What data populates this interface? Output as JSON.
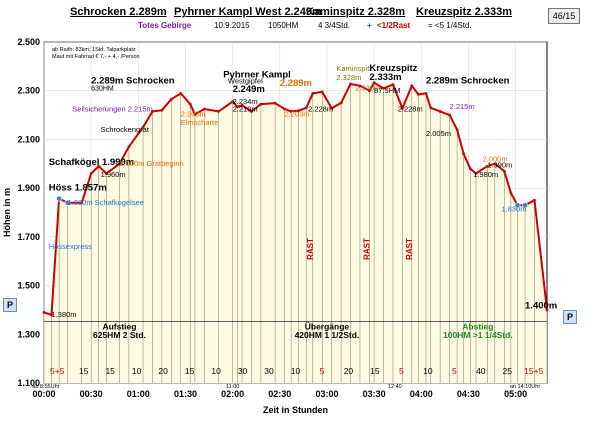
{
  "header": {
    "title_parts": [
      "Schrocken 2.289m",
      "Pyhrner Kampl West 2.249m",
      "Kaminspitz 2.328m",
      "Kreuzspitz 2.333m"
    ],
    "subtitle": {
      "region": "Totes Gebirge",
      "date": "10.9.2015",
      "hm": "1050HM",
      "duration": "4 3/4Std.",
      "rast_prefix": "+",
      "rast": "<1/2Rast",
      "total": "= <5 1/4Std."
    },
    "page_indicator": "46/15"
  },
  "buttons": {
    "prev": "P",
    "next": "P"
  },
  "colors": {
    "profile_line": "#cc0000",
    "fill": "#fffbe3",
    "label_orange": "#e07000",
    "label_purple": "#7a1fa0",
    "label_green": "#1f8a1f",
    "label_blue": "#1f6fd0",
    "label_olive": "#8a7a00",
    "label_red": "#cc0000"
  },
  "chart_data": {
    "type": "area",
    "xlabel": "Zeit in Stunden",
    "ylabel": "Höhen in m",
    "ylim": [
      1100,
      2500
    ],
    "xlim": [
      0,
      5.333
    ],
    "y_ticks": [
      "1.100",
      "1.300",
      "1.500",
      "1.700",
      "1.900",
      "2.100",
      "2.300",
      "2.500"
    ],
    "y_tick_values": [
      1100,
      1300,
      1500,
      1700,
      1900,
      2100,
      2300,
      2500
    ],
    "x_ticks": [
      "00:00",
      "00:30",
      "01:00",
      "01:30",
      "02:00",
      "02:30",
      "03:00",
      "03:30",
      "04:00",
      "04:30",
      "05:00"
    ],
    "x_tick_values": [
      0,
      0.5,
      1,
      1.5,
      2,
      2.5,
      3,
      3.5,
      4,
      4.5,
      5
    ],
    "x": [
      0,
      0.08,
      0.16,
      0.25,
      0.4,
      0.5,
      0.58,
      0.66,
      0.8,
      0.9,
      1.05,
      1.15,
      1.25,
      1.35,
      1.45,
      1.55,
      1.6,
      1.7,
      1.85,
      2.0,
      2.05,
      2.1,
      2.2,
      2.3,
      2.45,
      2.55,
      2.62,
      2.7,
      2.78,
      2.85,
      2.95,
      3.05,
      3.15,
      3.25,
      3.35,
      3.45,
      3.5,
      3.6,
      3.7,
      3.8,
      3.9,
      3.97,
      4.05,
      4.1,
      4.2,
      4.3,
      4.38,
      4.45,
      4.52,
      4.58,
      4.7,
      4.78,
      4.88,
      4.95,
      5.02,
      5.1,
      5.2,
      5.333
    ],
    "values": [
      1390,
      1380,
      1857,
      1840,
      1840,
      1960,
      1990,
      1960,
      2000,
      2070,
      2150,
      2215,
      2220,
      2265,
      2289,
      2245,
      2203,
      2225,
      2215,
      2255,
      2234,
      2240,
      2215,
      2245,
      2249,
      2225,
      2215,
      2218,
      2230,
      2289,
      2295,
      2228,
      2250,
      2328,
      2320,
      2300,
      2333,
      2310,
      2325,
      2228,
      2320,
      2285,
      2289,
      2230,
      2215,
      2200,
      2140,
      2040,
      1980,
      1960,
      1990,
      2000,
      1970,
      1880,
      1830,
      1830,
      1850,
      1400
    ],
    "annotations": [
      {
        "t": 0.05,
        "y": 1995,
        "text": "Schafkögel 1.999m"
      },
      {
        "t": 0.05,
        "y": 1890,
        "text": "Höss 1.857m"
      },
      {
        "t": 0.25,
        "y": 1830,
        "text": "1.830m Schafkogelsee"
      },
      {
        "t": 0.05,
        "y": 1650,
        "text": "Hössexpress"
      },
      {
        "t": 0.08,
        "y": 1370,
        "text": "1.380m"
      },
      {
        "t": 0.6,
        "y": 1945,
        "text": "1.960m"
      },
      {
        "t": 0.8,
        "y": 1990,
        "text": "2.000m Gratbeginn"
      },
      {
        "t": 0.6,
        "y": 2130,
        "text": "Schrockengrat"
      },
      {
        "t": 0.3,
        "y": 2215,
        "text": "Seilsicherungen 2.215m"
      },
      {
        "t": 0.5,
        "y": 2330,
        "text": "2.289m Schrocken"
      },
      {
        "t": 1.45,
        "y": 2195,
        "text": "2.203m"
      },
      {
        "t": 1.45,
        "y": 2160,
        "text": "Elmscharte"
      },
      {
        "t": 2.0,
        "y": 2245,
        "text": "2.234m"
      },
      {
        "t": 2.0,
        "y": 2215,
        "text": "2.210m"
      },
      {
        "t": 2.5,
        "y": 2320,
        "text": "2.289m"
      },
      {
        "t": 2.55,
        "y": 2195,
        "text": "2.203m"
      },
      {
        "t": 2.8,
        "y": 2215,
        "text": "2.228m"
      },
      {
        "t": 3.1,
        "y": 2380,
        "text": "Kaminspitz"
      },
      {
        "t": 3.1,
        "y": 2345,
        "text": "2.328m"
      },
      {
        "t": 3.3,
        "y": 2300,
        "text": "2.328m"
      },
      {
        "t": 3.45,
        "y": 2380,
        "text": "Kreuzspitz"
      },
      {
        "t": 3.45,
        "y": 2345,
        "text": "2.333m"
      },
      {
        "t": 3.5,
        "y": 2290,
        "text": "87.5HM"
      },
      {
        "t": 3.75,
        "y": 2215,
        "text": "2.228m"
      },
      {
        "t": 4.05,
        "y": 2330,
        "text": "2.289m Schrocken"
      },
      {
        "t": 4.3,
        "y": 2225,
        "text": "2.215m"
      },
      {
        "t": 4.05,
        "y": 2115,
        "text": "2.005m"
      },
      {
        "t": 4.65,
        "y": 2010,
        "text": "2.000m"
      },
      {
        "t": 4.55,
        "y": 1945,
        "text": "1.980m"
      },
      {
        "t": 4.7,
        "y": 1985,
        "text": "1.990m"
      },
      {
        "t": 4.85,
        "y": 1805,
        "text": "1.830m"
      },
      {
        "t": 5.1,
        "y": 1405,
        "text": "1.400m"
      },
      {
        "t": 1.9,
        "y": 2355,
        "text": "Pyhrner Kampl"
      },
      {
        "t": 1.95,
        "y": 2330,
        "text": "Westgipfel"
      },
      {
        "t": 2.0,
        "y": 2295,
        "text": "2.249m"
      }
    ],
    "notes": {
      "info_1": "ab Raith: 83km; 1Std. Talparkplatz",
      "info_2": "Maut mit Fahrrad € 7,- + 4,- /Person",
      "start_sub": "630HM",
      "mid_sub": "Westgipfel"
    },
    "phases": [
      {
        "label": "Aufstieg",
        "sub": "625HM 2 Std.",
        "color": "#000000"
      },
      {
        "label": "Übergänge",
        "sub": "420HM 1 1/2Std.",
        "color": "#000000"
      },
      {
        "label": "Abstieg",
        "sub": "100HM >1 1/4Std.",
        "color": "#1f8a1f"
      }
    ],
    "rast_labels": [
      "RAST",
      "RAST",
      "RAST"
    ],
    "bottom_segments": [
      "5+5",
      "15",
      "15",
      "10",
      "20",
      "15",
      "10",
      "30",
      "30",
      "10",
      "5",
      "20",
      "15",
      "5",
      "10",
      "5",
      "40",
      "25",
      "15+5"
    ],
    "time_marks": [
      "ab 8:55Uhr",
      "11:00",
      "12:40",
      "an 14:10Uhr"
    ]
  }
}
